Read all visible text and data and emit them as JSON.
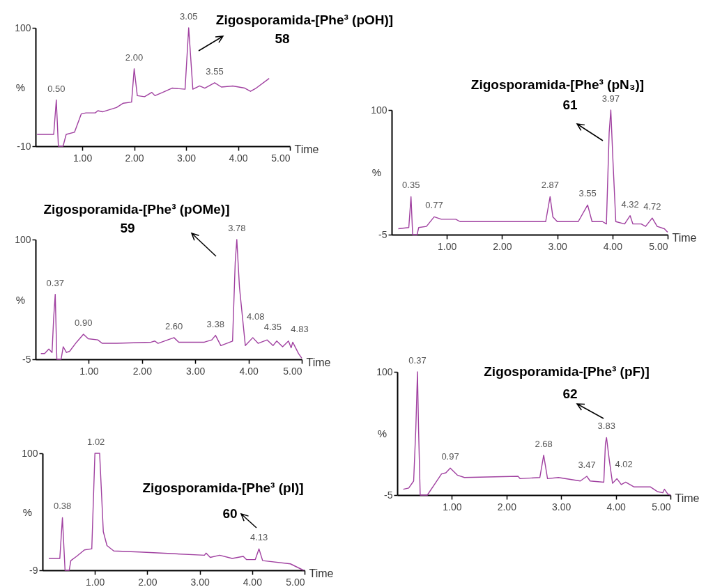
{
  "chart_data": [
    {
      "type": "line",
      "title": "Zigosporamida-[Phe³ (pOH)]",
      "subtitle": "58",
      "xlabel": "Time",
      "ylabel": "%",
      "xlim": [
        0.1,
        5
      ],
      "xticks": [
        {
          "value": 1,
          "label": "1.00"
        },
        {
          "value": 2,
          "label": "2.00"
        },
        {
          "value": 3,
          "label": "3.00"
        },
        {
          "value": 4,
          "label": "4.00"
        },
        {
          "value": 5,
          "label": "5.00"
        }
      ],
      "ylim": [
        -10,
        100
      ],
      "yticks": [
        -10,
        100
      ],
      "x": [
        0.13,
        0.45,
        0.5,
        0.54,
        0.63,
        0.69,
        0.85,
        0.98,
        1.07,
        1.25,
        1.3,
        1.39,
        1.66,
        1.79,
        1.95,
        2.0,
        2.06,
        2.2,
        2.34,
        2.4,
        2.55,
        2.73,
        2.98,
        3.05,
        3.13,
        3.26,
        3.36,
        3.55,
        3.68,
        3.9,
        4.13,
        4.24,
        4.35,
        4.6
      ],
      "series": [
        {
          "color": "#a040a0",
          "values": [
            1,
            1,
            33,
            -10,
            -10,
            1,
            3,
            20,
            21,
            21,
            23,
            22,
            26,
            30,
            31,
            62,
            37,
            36,
            40,
            37,
            40,
            44,
            43,
            100,
            43,
            46,
            44,
            49,
            45,
            46,
            44,
            41,
            44,
            53
          ]
        }
      ],
      "annotations": [
        {
          "text": "0.50",
          "x": 0.5,
          "y": 33
        },
        {
          "text": "2.00",
          "x": 2.0,
          "y": 62
        },
        {
          "text": "3.05",
          "x": 3.05,
          "y": 100
        },
        {
          "text": "3.55",
          "x": 3.55,
          "y": 49
        }
      ]
    },
    {
      "type": "line",
      "title": "Zigosporamida-[Phe³ (pOMe)]",
      "subtitle": "59",
      "xlabel": "Time",
      "ylabel": "%",
      "xlim": [
        0,
        5
      ],
      "xticks": [
        {
          "value": 1,
          "label": "1.00"
        },
        {
          "value": 2,
          "label": "2.00"
        },
        {
          "value": 3,
          "label": "3.00"
        },
        {
          "value": 4,
          "label": "4.00"
        },
        {
          "value": 5,
          "label": "5.00"
        }
      ],
      "ylim": [
        -5,
        100
      ],
      "yticks": [
        -5,
        100
      ],
      "x": [
        0.1,
        0.17,
        0.25,
        0.31,
        0.34,
        0.37,
        0.4,
        0.48,
        0.52,
        0.58,
        0.64,
        0.77,
        0.9,
        0.99,
        1.17,
        1.25,
        1.52,
        2.17,
        2.24,
        2.3,
        2.6,
        2.69,
        3.17,
        3.31,
        3.38,
        3.48,
        3.7,
        3.75,
        3.78,
        3.83,
        3.94,
        4.08,
        4.18,
        4.35,
        4.46,
        4.53,
        4.64,
        4.75,
        4.8,
        4.83,
        4.94,
        5.0
      ],
      "series": [
        {
          "color": "#a040a0",
          "values": [
            0,
            0,
            4,
            1,
            31,
            52,
            -5,
            -5,
            6,
            1,
            2,
            10,
            17,
            13,
            12,
            9,
            9,
            10,
            11,
            9,
            14,
            10,
            10,
            12,
            16,
            7,
            11,
            80,
            100,
            58,
            7,
            14,
            9,
            12,
            7,
            11,
            6,
            11,
            5,
            10,
            0,
            -4
          ]
        }
      ],
      "annotations": [
        {
          "text": "0.37",
          "x": 0.37,
          "y": 52
        },
        {
          "text": "0.90",
          "x": 0.9,
          "y": 17
        },
        {
          "text": "2.60",
          "x": 2.6,
          "y": 14
        },
        {
          "text": "3.38",
          "x": 3.38,
          "y": 16
        },
        {
          "text": "3.78",
          "x": 3.78,
          "y": 100
        },
        {
          "text": "4.08",
          "x": 4.08,
          "y": 14
        },
        {
          "text": "4.35",
          "x": 4.35,
          "y": 12
        },
        {
          "text": "4.83",
          "x": 4.83,
          "y": 10
        }
      ]
    },
    {
      "type": "line",
      "title": "Zigosporamida-[Phe³ (pI)]",
      "subtitle": "60",
      "xlabel": "Time",
      "ylabel": "%",
      "xlim": [
        0,
        5
      ],
      "xticks": [
        {
          "value": 1,
          "label": "1.00"
        },
        {
          "value": 2,
          "label": "2.00"
        },
        {
          "value": 3,
          "label": "3.00"
        },
        {
          "value": 4,
          "label": "4.00"
        },
        {
          "value": 5,
          "label": "5.00"
        }
      ],
      "ylim": [
        -9,
        100
      ],
      "yticks": [
        -9,
        100
      ],
      "x": [
        0.12,
        0.33,
        0.38,
        0.43,
        0.51,
        0.54,
        0.65,
        0.8,
        0.94,
        1.0,
        1.02,
        1.09,
        1.16,
        1.23,
        1.36,
        1.85,
        3.09,
        3.12,
        3.2,
        3.38,
        3.62,
        3.83,
        3.89,
        4.06,
        4.13,
        4.2,
        4.73,
        4.98
      ],
      "series": [
        {
          "color": "#a040a0",
          "values": [
            2,
            2,
            40,
            -9,
            -9,
            0,
            4,
            10,
            11,
            100,
            100,
            100,
            27,
            14,
            9,
            8,
            5,
            7,
            3,
            5,
            2,
            4,
            1,
            1,
            11,
            0,
            -3,
            -9
          ]
        }
      ],
      "annotations": [
        {
          "text": "0.38",
          "x": 0.38,
          "y": 40
        },
        {
          "text": "1.02",
          "x": 1.02,
          "y": 100
        },
        {
          "text": "4.13",
          "x": 4.13,
          "y": 11
        }
      ]
    },
    {
      "type": "line",
      "title": "Zigosporamida-[Phe³ (pN₃)]",
      "subtitle": "61",
      "xlabel": "Time",
      "ylabel": "%",
      "xlim": [
        0,
        5
      ],
      "xticks": [
        {
          "value": 1,
          "label": "1.00"
        },
        {
          "value": 2,
          "label": "2.00"
        },
        {
          "value": 3,
          "label": "3.00"
        },
        {
          "value": 4,
          "label": "4.00"
        },
        {
          "value": 5,
          "label": "5.00"
        }
      ],
      "ylim": [
        -5,
        100
      ],
      "yticks": [
        -5,
        100
      ],
      "x": [
        0.12,
        0.31,
        0.35,
        0.38,
        0.46,
        0.49,
        0.63,
        0.77,
        0.9,
        1.16,
        1.24,
        1.74,
        2.79,
        2.87,
        2.92,
        3.0,
        3.38,
        3.55,
        3.63,
        3.82,
        3.89,
        3.94,
        3.97,
        4.01,
        4.06,
        4.22,
        4.32,
        4.37,
        4.52,
        4.6,
        4.72,
        4.81,
        4.94,
        5.0
      ],
      "series": [
        {
          "color": "#a040a0",
          "values": [
            0,
            1,
            27,
            -5,
            -5,
            1,
            2,
            10,
            8,
            8,
            6,
            6,
            6,
            27,
            10,
            6,
            6,
            20,
            6,
            6,
            4,
            81,
            100,
            56,
            6,
            4,
            11,
            4,
            4,
            2,
            9,
            2,
            0,
            -3
          ]
        }
      ],
      "annotations": [
        {
          "text": "0.35",
          "x": 0.35,
          "y": 27
        },
        {
          "text": "0.77",
          "x": 0.77,
          "y": 10
        },
        {
          "text": "2.87",
          "x": 2.87,
          "y": 27
        },
        {
          "text": "3.55",
          "x": 3.55,
          "y": 20
        },
        {
          "text": "3.97",
          "x": 3.97,
          "y": 100
        },
        {
          "text": "4.32",
          "x": 4.32,
          "y": 11
        },
        {
          "text": "4.72",
          "x": 4.72,
          "y": 9
        }
      ]
    },
    {
      "type": "line",
      "title": "Zigosporamida-[Phe³ (pF)]",
      "subtitle": "62",
      "xlabel": "Time",
      "ylabel": "%",
      "xlim": [
        0,
        5
      ],
      "xticks": [
        {
          "value": 1,
          "label": "1.00"
        },
        {
          "value": 2,
          "label": "2.00"
        },
        {
          "value": 3,
          "label": "3.00"
        },
        {
          "value": 4,
          "label": "4.00"
        },
        {
          "value": 5,
          "label": "5.00"
        }
      ],
      "ylim": [
        -5,
        100
      ],
      "yticks": [
        -5,
        100
      ],
      "x": [
        0.11,
        0.21,
        0.3,
        0.34,
        0.37,
        0.39,
        0.42,
        0.55,
        0.68,
        0.81,
        0.89,
        0.97,
        1.1,
        1.23,
        2.21,
        2.25,
        2.61,
        2.68,
        2.75,
        2.95,
        3.35,
        3.47,
        3.53,
        3.78,
        3.81,
        3.83,
        3.88,
        3.94,
        4.02,
        4.1,
        4.18,
        4.33,
        4.63,
        4.76,
        4.86,
        4.89,
        4.95,
        5.0
      ],
      "series": [
        {
          "color": "#a040a0",
          "values": [
            0,
            1,
            7,
            52,
            100,
            51,
            -5,
            -5,
            4,
            13,
            14,
            18,
            12,
            10,
            11,
            9,
            10,
            29,
            9,
            10,
            7,
            11,
            7,
            6,
            39,
            44,
            25,
            5,
            9,
            4,
            6,
            2,
            2,
            -2,
            -3,
            0,
            -4,
            -5
          ]
        }
      ],
      "annotations": [
        {
          "text": "0.37",
          "x": 0.37,
          "y": 100
        },
        {
          "text": "0.97",
          "x": 0.97,
          "y": 18
        },
        {
          "text": "2.68",
          "x": 2.68,
          "y": 29
        },
        {
          "text": "3.47",
          "x": 3.47,
          "y": 11
        },
        {
          "text": "3.83",
          "x": 3.83,
          "y": 44
        },
        {
          "text": "4.02",
          "x": 4.02,
          "y": 9
        }
      ]
    }
  ]
}
